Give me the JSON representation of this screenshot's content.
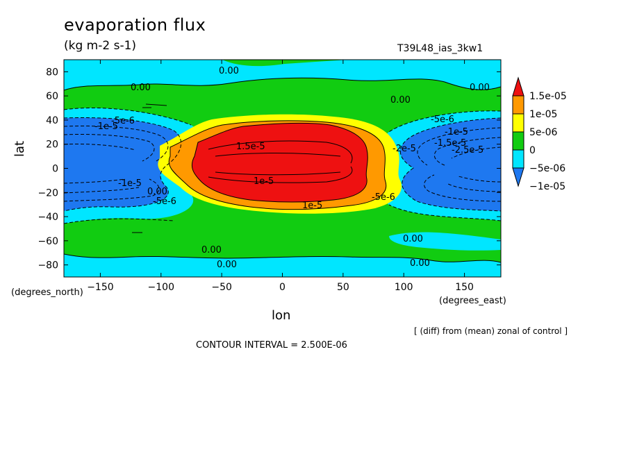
{
  "chart_data": {
    "type": "heatmap",
    "title": "evaporation flux",
    "units": "(kg m-2 s-1)",
    "dataset": "T39L48_ias_3kw1",
    "xlabel": "lon",
    "ylabel": "lat",
    "x_units": "(degrees_east)",
    "y_units": "(degrees_north)",
    "xlim": [
      -180,
      180
    ],
    "ylim": [
      -90,
      90
    ],
    "x_ticks": [
      "-150",
      "-100",
      "-50",
      "0",
      "50",
      "100",
      "150"
    ],
    "y_ticks": [
      "80",
      "60",
      "40",
      "20",
      "0",
      "-20",
      "-40",
      "-60",
      "-80"
    ],
    "colorbar": {
      "labels": [
        "1.5e-05",
        "1e-05",
        "5e-06",
        "0",
        "-5e-06",
        "-1e-05"
      ],
      "levels": [
        -1e-05,
        -5e-06,
        0,
        5e-06,
        1e-05,
        1.5e-05
      ],
      "colors": [
        "#1e78f0",
        "#00e6ff",
        "#11cc11",
        "#ffff00",
        "#ff9900",
        "#ee1111"
      ]
    },
    "contour_labels": [
      "0.00",
      "0.00",
      "0.00",
      "0.00",
      "0.00",
      "0.00",
      "0.00",
      "0.00",
      "0.00",
      "-5e-6",
      "-1e-5",
      "-5e-6",
      "-1e-5",
      "-1.5e-5",
      "-2.5e-5",
      "-2e-5",
      "1e-5",
      "1e-5",
      "1.5e-5",
      "-1e-5",
      "-5e-6",
      "-5e-6"
    ],
    "note": "[ (diff) from (mean) zonal of control ]",
    "contour_interval": "CONTOUR INTERVAL = 2.500E-06"
  }
}
